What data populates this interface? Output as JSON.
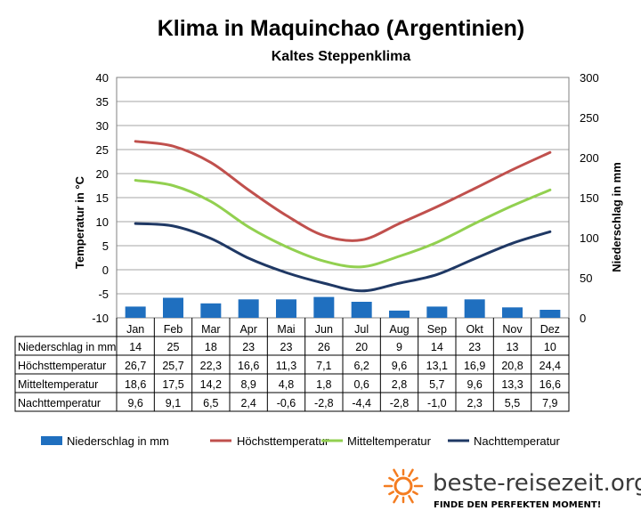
{
  "chart_data": {
    "type": "bar+line",
    "title": "Klima in Maquinchao (Argentinien)",
    "subtitle": "Kaltes Steppenklima",
    "ylabel_left": "Temperatur in °C",
    "ylabel_right": "Niederschlag in mm",
    "ylim_left": [
      -10,
      40
    ],
    "ylim_right": [
      0,
      300
    ],
    "yticks_left": [
      "40",
      "35",
      "30",
      "25",
      "20",
      "15",
      "10",
      "5",
      "0",
      "-5",
      "-10"
    ],
    "yticks_right": [
      "300",
      "250",
      "200",
      "150",
      "100",
      "50",
      "0"
    ],
    "grid": true,
    "legend_position": "bottom",
    "categories": [
      "Jan",
      "Feb",
      "Mar",
      "Apr",
      "Mai",
      "Jun",
      "Jul",
      "Aug",
      "Sep",
      "Okt",
      "Nov",
      "Dez"
    ],
    "series": [
      {
        "name": "Niederschlag in mm",
        "kind": "bar",
        "axis": "right",
        "color": "#1f6fbf",
        "values": [
          14,
          25,
          18,
          23,
          23,
          26,
          20,
          9,
          14,
          23,
          13,
          10
        ],
        "labels": [
          "14",
          "25",
          "18",
          "23",
          "23",
          "26",
          "20",
          "9",
          "14",
          "23",
          "13",
          "10"
        ]
      },
      {
        "name": "Höchsttemperatur",
        "kind": "line",
        "axis": "left",
        "color": "#c0504d",
        "values": [
          26.7,
          25.7,
          22.3,
          16.6,
          11.3,
          7.1,
          6.2,
          9.6,
          13.1,
          16.9,
          20.8,
          24.4
        ],
        "labels": [
          "26,7",
          "25,7",
          "22,3",
          "16,6",
          "11,3",
          "7,1",
          "6,2",
          "9,6",
          "13,1",
          "16,9",
          "20,8",
          "24,4"
        ]
      },
      {
        "name": "Mitteltemperatur",
        "kind": "line",
        "axis": "left",
        "color": "#92d050",
        "values": [
          18.6,
          17.5,
          14.2,
          8.9,
          4.8,
          1.8,
          0.6,
          2.8,
          5.7,
          9.6,
          13.3,
          16.6
        ],
        "labels": [
          "18,6",
          "17,5",
          "14,2",
          "8,9",
          "4,8",
          "1,8",
          "0,6",
          "2,8",
          "5,7",
          "9,6",
          "13,3",
          "16,6"
        ]
      },
      {
        "name": "Nachttemperatur",
        "kind": "line",
        "axis": "left",
        "color": "#1f3864",
        "values": [
          9.6,
          9.1,
          6.5,
          2.4,
          -0.6,
          -2.8,
          -4.4,
          -2.8,
          -1.0,
          2.3,
          5.5,
          7.9
        ],
        "labels": [
          "9,6",
          "9,1",
          "6,5",
          "2,4",
          "-0,6",
          "-2,8",
          "-4,4",
          "-2,8",
          "-1,0",
          "2,3",
          "5,5",
          "7,9"
        ]
      }
    ]
  },
  "branding": {
    "site": "beste-reisezeit.org",
    "tagline": "FINDE DEN PERFEKTEN MOMENT!",
    "sun_color": "#f47c20",
    "sun_icon": "sun-icon"
  }
}
